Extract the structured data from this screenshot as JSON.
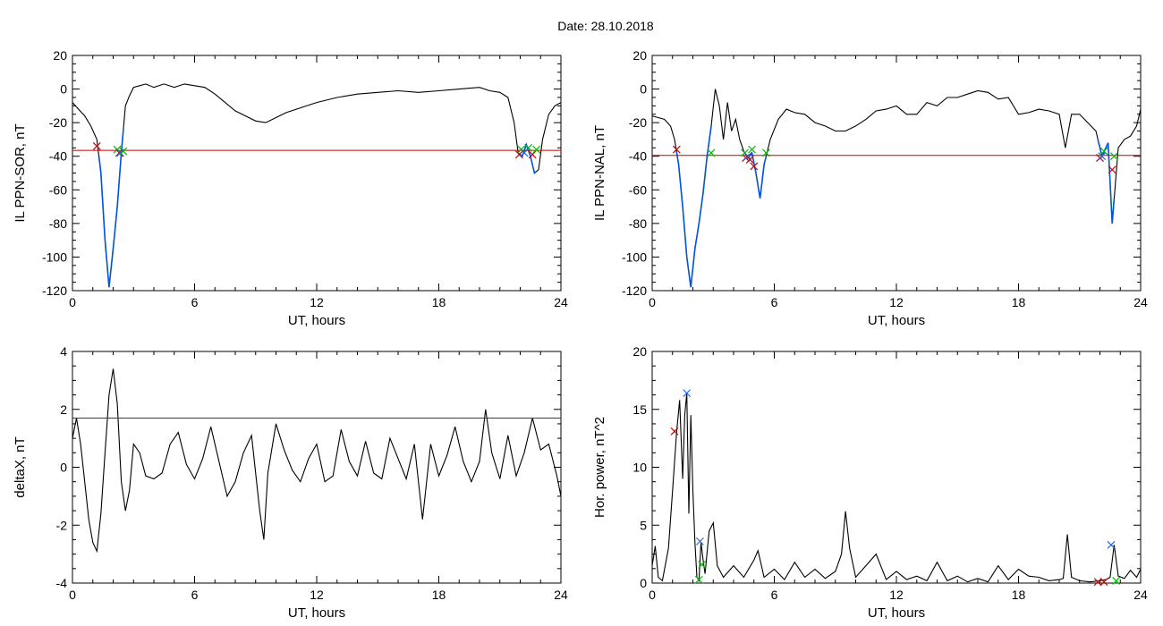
{
  "figure": {
    "title": "Date:  28.10.2018"
  },
  "colors": {
    "trace": "#000000",
    "threshold": "#cc0000",
    "event": "#0055dd",
    "marker_red": "#cc0000",
    "marker_green": "#00bb00",
    "marker_blue": "#2266dd"
  },
  "chart_data": [
    {
      "id": "p1",
      "type": "line",
      "xlabel": "UT, hours",
      "ylabel": "IL PPN-SOR, nT",
      "xlim": [
        0,
        24
      ],
      "ylim": [
        -120,
        20
      ],
      "xticks": [
        0,
        6,
        12,
        18,
        24
      ],
      "yticks": [
        -120,
        -100,
        -80,
        -60,
        -40,
        -20,
        0,
        20
      ],
      "threshold": -36.5,
      "series": [
        {
          "x": [
            0,
            0.3,
            0.6,
            0.9,
            1.2,
            1.4,
            1.6,
            1.8,
            2.0,
            2.2,
            2.4,
            2.6,
            2.8,
            3.0,
            3.3,
            3.6,
            4,
            4.5,
            5,
            5.5,
            6,
            6.5,
            7,
            7.5,
            8,
            8.5,
            9,
            9.5,
            10,
            10.5,
            11,
            11.5,
            12,
            13,
            14,
            15,
            16,
            17,
            18,
            19,
            20,
            20.5,
            21,
            21.4,
            21.7,
            21.9,
            22.1,
            22.3,
            22.5,
            22.7,
            22.9,
            23.1,
            23.4,
            23.7,
            24
          ],
          "y": [
            -8,
            -12,
            -16,
            -22,
            -30,
            -50,
            -90,
            -118,
            -95,
            -70,
            -38,
            -10,
            -4,
            1,
            2,
            3,
            1,
            3,
            1,
            3,
            2,
            1,
            -3,
            -8,
            -13,
            -16,
            -19,
            -20,
            -17,
            -14,
            -12,
            -10,
            -8,
            -5,
            -3,
            -2,
            -1,
            -2,
            -1,
            0,
            1,
            -1,
            -2,
            -5,
            -20,
            -38,
            -40,
            -33,
            -40,
            -50,
            -48,
            -30,
            -15,
            -10,
            -8
          ]
        }
      ],
      "event_intervals": [
        [
          1.3,
          2.5
        ],
        [
          21.9,
          22.8
        ]
      ],
      "markers": {
        "red": [
          [
            1.2,
            -34
          ],
          [
            2.3,
            -38
          ],
          [
            21.95,
            -39
          ],
          [
            22.6,
            -39
          ]
        ],
        "green": [
          [
            2.2,
            -36
          ],
          [
            2.5,
            -37
          ],
          [
            22.05,
            -36
          ],
          [
            22.4,
            -35
          ],
          [
            22.8,
            -36
          ]
        ],
        "blue": [
          [
            2.35,
            -38
          ],
          [
            22.2,
            -38
          ]
        ]
      }
    },
    {
      "id": "p2",
      "type": "line",
      "xlabel": "UT, hours",
      "ylabel": "IL PPN-NAL, nT",
      "xlim": [
        0,
        24
      ],
      "ylim": [
        -120,
        20
      ],
      "xticks": [
        0,
        6,
        12,
        18,
        24
      ],
      "yticks": [
        -120,
        -100,
        -80,
        -60,
        -40,
        -20,
        0,
        20
      ],
      "threshold": -39.5,
      "series": [
        {
          "x": [
            0,
            0.3,
            0.6,
            0.9,
            1.1,
            1.3,
            1.5,
            1.7,
            1.9,
            2.1,
            2.3,
            2.5,
            2.7,
            2.9,
            3.1,
            3.3,
            3.5,
            3.7,
            3.9,
            4.1,
            4.3,
            4.5,
            4.7,
            4.9,
            5.1,
            5.3,
            5.5,
            5.8,
            6.2,
            6.6,
            7,
            7.5,
            8,
            8.5,
            9,
            9.5,
            10,
            10.5,
            11,
            11.5,
            12,
            12.5,
            13,
            13.5,
            14,
            14.5,
            15,
            15.5,
            16,
            16.5,
            17,
            17.5,
            18,
            18.5,
            19,
            19.5,
            20,
            20.3,
            20.6,
            21,
            21.4,
            21.8,
            22.1,
            22.4,
            22.6,
            22.9,
            23.2,
            23.5,
            23.8,
            24
          ],
          "y": [
            -16,
            -17,
            -18,
            -22,
            -30,
            -45,
            -70,
            -100,
            -118,
            -95,
            -80,
            -62,
            -40,
            -22,
            0,
            -10,
            -30,
            -8,
            -25,
            -18,
            -30,
            -37,
            -41,
            -38,
            -50,
            -65,
            -45,
            -30,
            -18,
            -12,
            -14,
            -15,
            -20,
            -22,
            -25,
            -25,
            -22,
            -18,
            -13,
            -12,
            -10,
            -15,
            -15,
            -8,
            -10,
            -5,
            -5,
            -3,
            -1,
            -2,
            -6,
            -5,
            -15,
            -14,
            -12,
            -13,
            -15,
            -35,
            -15,
            -15,
            -20,
            -25,
            -40,
            -32,
            -80,
            -35,
            -30,
            -28,
            -22,
            -12
          ]
        }
      ],
      "event_intervals": [
        [
          1.2,
          2.9
        ],
        [
          4.6,
          5.6
        ],
        [
          21.9,
          22.7
        ]
      ],
      "markers": {
        "red": [
          [
            1.2,
            -36
          ],
          [
            4.6,
            -41
          ],
          [
            4.8,
            -42
          ],
          [
            5.0,
            -46
          ],
          [
            22.0,
            -41
          ],
          [
            22.6,
            -48
          ]
        ],
        "green": [
          [
            2.9,
            -38
          ],
          [
            4.55,
            -38
          ],
          [
            4.9,
            -36
          ],
          [
            5.6,
            -38
          ],
          [
            22.2,
            -37
          ],
          [
            22.7,
            -40
          ]
        ],
        "blue": [
          [
            4.7,
            -40
          ],
          [
            22.1,
            -40
          ]
        ]
      }
    },
    {
      "id": "p3",
      "type": "line",
      "xlabel": "UT, hours",
      "ylabel": "deltaX, nT",
      "xlim": [
        0,
        24
      ],
      "ylim": [
        -4,
        4
      ],
      "xticks": [
        0,
        6,
        12,
        18,
        24
      ],
      "yticks": [
        -4,
        -2,
        0,
        2,
        4
      ],
      "threshold": 1.7,
      "series": [
        {
          "x": [
            0,
            0.2,
            0.4,
            0.6,
            0.8,
            1.0,
            1.2,
            1.4,
            1.6,
            1.8,
            2.0,
            2.2,
            2.4,
            2.6,
            2.8,
            3.0,
            3.3,
            3.6,
            4,
            4.4,
            4.8,
            5.2,
            5.6,
            6,
            6.4,
            6.8,
            7.2,
            7.6,
            8,
            8.4,
            8.8,
            9.2,
            9.4,
            9.6,
            10,
            10.4,
            10.8,
            11.2,
            11.6,
            12,
            12.4,
            12.8,
            13.2,
            13.6,
            14,
            14.4,
            14.8,
            15.2,
            15.6,
            16,
            16.4,
            16.8,
            17.2,
            17.6,
            18,
            18.4,
            18.8,
            19.2,
            19.6,
            20,
            20.3,
            20.6,
            21,
            21.4,
            21.8,
            22.2,
            22.6,
            23,
            23.4,
            23.8,
            24
          ],
          "y": [
            1.0,
            1.7,
            0.8,
            -0.5,
            -1.8,
            -2.6,
            -2.9,
            -1.6,
            0.5,
            2.5,
            3.4,
            2.2,
            -0.5,
            -1.5,
            -0.8,
            0.8,
            0.5,
            -0.3,
            -0.4,
            -0.2,
            0.8,
            1.2,
            0.1,
            -0.4,
            0.3,
            1.4,
            0.2,
            -1.0,
            -0.5,
            0.5,
            1.1,
            -1.5,
            -2.5,
            -0.2,
            1.5,
            0.6,
            -0.1,
            -0.5,
            0.3,
            0.8,
            -0.5,
            -0.3,
            1.3,
            0.2,
            -0.3,
            0.9,
            -0.2,
            -0.4,
            1.0,
            0.3,
            -0.4,
            0.8,
            -1.8,
            0.8,
            -0.3,
            0.4,
            1.4,
            0.2,
            -0.5,
            0.2,
            2.0,
            0.5,
            -0.4,
            1.1,
            -0.3,
            0.5,
            1.7,
            0.6,
            0.8,
            -0.3,
            -1.0
          ]
        }
      ]
    },
    {
      "id": "p4",
      "type": "line",
      "xlabel": "UT, hours",
      "ylabel": "Hor. power, nT^2",
      "xlim": [
        0,
        24
      ],
      "ylim": [
        0,
        20
      ],
      "xticks": [
        0,
        6,
        12,
        18,
        24
      ],
      "yticks": [
        0,
        5,
        10,
        15,
        20
      ],
      "series": [
        {
          "x": [
            0,
            0.15,
            0.3,
            0.5,
            0.8,
            1.0,
            1.2,
            1.35,
            1.5,
            1.6,
            1.7,
            1.8,
            1.9,
            2.0,
            2.1,
            2.2,
            2.3,
            2.4,
            2.5,
            2.6,
            2.8,
            3.0,
            3.2,
            3.5,
            4,
            4.5,
            5,
            5.2,
            5.5,
            6,
            6.5,
            7,
            7.5,
            8,
            8.5,
            9,
            9.3,
            9.5,
            9.7,
            10,
            10.5,
            11,
            11.5,
            12,
            12.5,
            13,
            13.5,
            14,
            14.5,
            15,
            15.5,
            16,
            16.5,
            17,
            17.5,
            18,
            18.5,
            19,
            19.5,
            20,
            20.2,
            20.4,
            20.6,
            21,
            21.5,
            22,
            22.3,
            22.5,
            22.7,
            22.9,
            23.2,
            23.5,
            23.8,
            24
          ],
          "y": [
            1.5,
            3.2,
            0.5,
            0.2,
            3.0,
            8.0,
            13.0,
            15.8,
            9.0,
            14.5,
            16.4,
            6.0,
            14.5,
            8.0,
            3.5,
            0.5,
            0.2,
            3.5,
            2.0,
            0.8,
            4.5,
            5.2,
            1.5,
            0.5,
            1.5,
            0.5,
            2.0,
            2.8,
            0.5,
            1.2,
            0.3,
            1.8,
            0.5,
            1.2,
            0.4,
            1.0,
            2.5,
            6.2,
            3.0,
            0.5,
            1.5,
            2.5,
            0.3,
            1.0,
            0.3,
            0.6,
            0.2,
            1.8,
            0.2,
            0.6,
            0.1,
            0.4,
            0.1,
            1.5,
            0.3,
            1.2,
            0.6,
            0.5,
            0.2,
            0.3,
            0.4,
            4.2,
            0.5,
            0.2,
            0.1,
            0.2,
            0.3,
            0.5,
            3.3,
            0.6,
            0.4,
            1.1,
            0.5,
            1.2
          ]
        }
      ],
      "markers": {
        "red": [
          [
            1.1,
            13.1
          ],
          [
            21.9,
            0.1
          ],
          [
            22.2,
            0.1
          ]
        ],
        "green": [
          [
            2.3,
            0.3
          ],
          [
            2.45,
            1.6
          ],
          [
            22.8,
            0.2
          ]
        ],
        "blue": [
          [
            1.7,
            16.4
          ],
          [
            2.35,
            3.6
          ],
          [
            22.55,
            3.3
          ]
        ]
      }
    }
  ]
}
